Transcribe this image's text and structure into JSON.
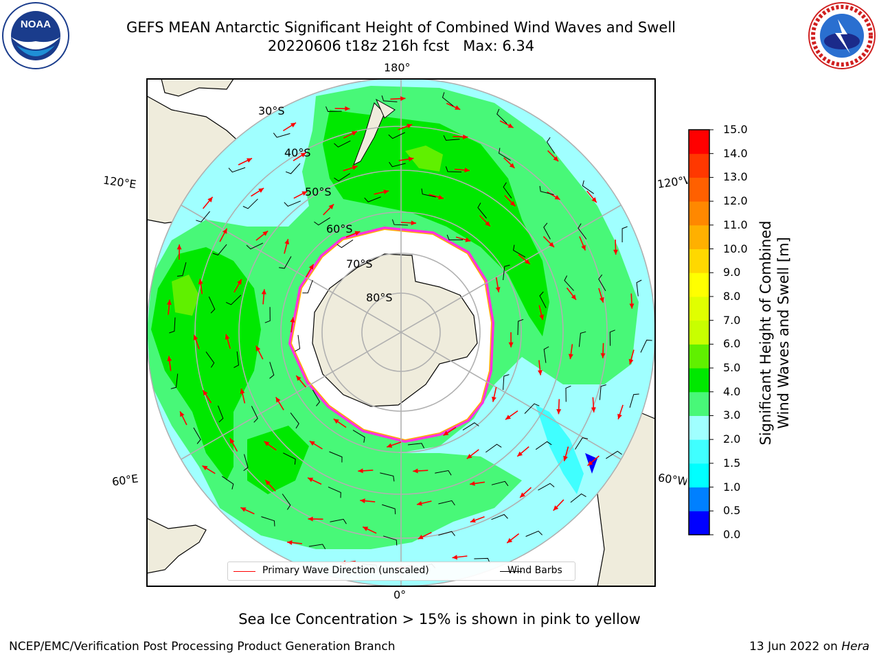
{
  "title": {
    "line1": "GEFS MEAN Antarctic Significant Height of Combined Wind Waves and Swell",
    "line2": "20220606 t18z 216h fcst   Max: 6.34"
  },
  "logos": {
    "noaa": {
      "text": "NOAA",
      "ring_text": "NATIONAL OCEANIC AND ATMOSPHERIC ADMINISTRATION • U.S. DEPARTMENT OF COMMERCE"
    },
    "nws": {
      "ring_text": "NATIONAL WEATHER SERVICE"
    }
  },
  "map": {
    "projection": "south-polar-stereographic",
    "lat_labels": [
      "30°S",
      "40°S",
      "50°S",
      "60°S",
      "70°S",
      "80°S"
    ],
    "lon_labels": {
      "top": "180°",
      "bottom": "0°",
      "upper_left": "120°E",
      "lower_left": "60°E",
      "upper_right": "120°W",
      "lower_right": "60°W"
    },
    "max_value": 6.34
  },
  "legend": {
    "items": [
      {
        "label": "Primary Wave Direction (unscaled)",
        "color": "#ff0000"
      },
      {
        "label": "Wind Barbs",
        "color": "#000000"
      }
    ]
  },
  "colorbar": {
    "label_line1": "Significant Height of Combined",
    "label_line2": "Wind Waves and Swell [m]",
    "ticks": [
      "0.0",
      "0.5",
      "1.0",
      "1.5",
      "2.0",
      "3.0",
      "4.0",
      "5.0",
      "6.0",
      "7.0",
      "8.0",
      "9.0",
      "10.0",
      "11.0",
      "12.0",
      "13.0",
      "14.0",
      "15.0"
    ],
    "colors": [
      "#0000ff",
      "#0080ff",
      "#00ffff",
      "#40ffff",
      "#a0ffff",
      "#48f878",
      "#00e800",
      "#60f000",
      "#c8ff00",
      "#e0ff00",
      "#ffff00",
      "#ffd800",
      "#ffb000",
      "#ff8800",
      "#ff6000",
      "#ff3800",
      "#ff0000"
    ]
  },
  "footer": {
    "note": "Sea Ice Concentration > 15% is shown in pink to yellow",
    "left": "NCEP/EMC/Verification Post Processing Product Generation Branch",
    "date": "13 Jun 2022 on ",
    "host": "Hera"
  }
}
